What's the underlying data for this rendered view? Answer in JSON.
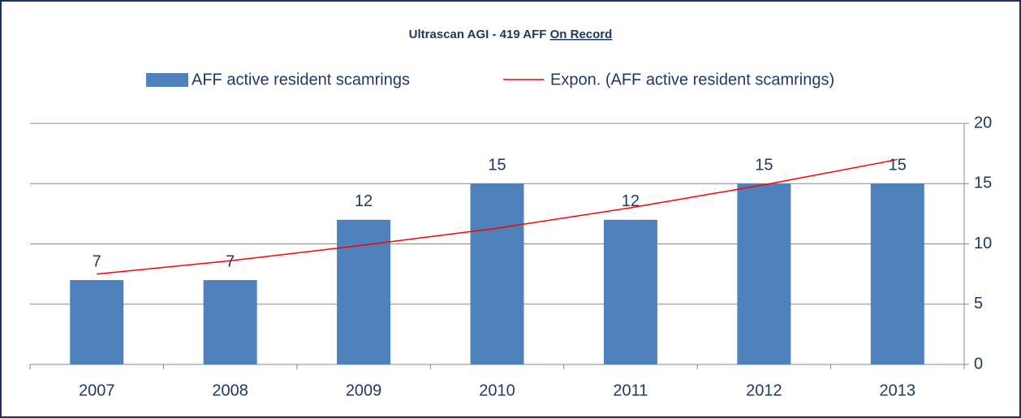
{
  "chart_data": {
    "type": "bar",
    "title": "Ultrascan AGI - 419 AFF",
    "title_underlined": "On Record",
    "categories": [
      "2007",
      "2008",
      "2009",
      "2010",
      "2011",
      "2012",
      "2013"
    ],
    "series": [
      {
        "name": "AFF active resident scamrings",
        "type": "bar",
        "color": "#4f81bd",
        "values": [
          7,
          7,
          12,
          15,
          12,
          15,
          15
        ]
      },
      {
        "name": "Expon. (AFF active resident scamrings)",
        "type": "line",
        "color": "#ff0000",
        "values": [
          7.5,
          8.6,
          9.9,
          11.3,
          13.0,
          14.9,
          17.0
        ]
      }
    ],
    "ylim": [
      0,
      20
    ],
    "yticks": [
      0,
      5,
      10,
      15,
      20
    ],
    "grid": true,
    "y_axis_side": "right",
    "legend": "top"
  }
}
